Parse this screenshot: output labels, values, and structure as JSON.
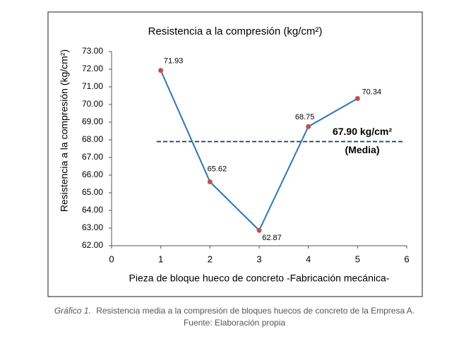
{
  "chart_data": {
    "type": "line",
    "title": "Resistencia a la compresión (kg/cm²)",
    "x_label": "Pieza de bloque hueco de concreto -Fabricación mecánica-",
    "y_label": "Resistencia a la compresión (kg/cm²)",
    "x": [
      1,
      2,
      3,
      4,
      5
    ],
    "values": [
      71.93,
      65.62,
      62.87,
      68.75,
      70.34
    ],
    "color": "#2e75b6",
    "marker_color": "#c0504d",
    "xlim": [
      0,
      6
    ],
    "xticks": [
      0,
      1,
      2,
      3,
      4,
      5,
      6
    ],
    "ylim": [
      62,
      73
    ],
    "yticks": [
      {
        "value": 62,
        "label": "62.00"
      },
      {
        "value": 63,
        "label": "63.00"
      },
      {
        "value": 64,
        "label": "64.00"
      },
      {
        "value": 65,
        "label": "65.00"
      },
      {
        "value": 66,
        "label": "66.00"
      },
      {
        "value": 67,
        "label": "67.00"
      },
      {
        "value": 68,
        "label": "68.00"
      },
      {
        "value": 69,
        "label": "69.00"
      },
      {
        "value": 70,
        "label": "70.00"
      },
      {
        "value": 71,
        "label": "71.00"
      },
      {
        "value": 72,
        "label": "72.00"
      },
      {
        "value": 73,
        "label": "73.00"
      }
    ],
    "mean": {
      "value": 67.9,
      "label": "67.90 kg/cm²",
      "note": "(Media)",
      "color": "#1f3864"
    }
  },
  "caption": {
    "label": "Gráfico 1.",
    "text": "Resistencia media a la compresión de bloques huecos de concreto de la Empresa A.",
    "source": "Fuente: Elaboración propia"
  }
}
